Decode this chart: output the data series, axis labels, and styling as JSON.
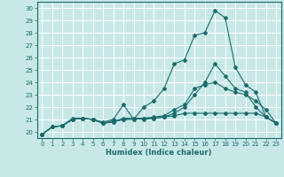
{
  "title": "",
  "xlabel": "Humidex (Indice chaleur)",
  "bg_color": "#c8e8e8",
  "grid_color": "#ffffff",
  "line_color": "#1a6b6b",
  "xlim": [
    -0.5,
    23.5
  ],
  "ylim": [
    19.5,
    30.5
  ],
  "xticks": [
    0,
    1,
    2,
    3,
    4,
    5,
    6,
    7,
    8,
    9,
    10,
    11,
    12,
    13,
    14,
    15,
    16,
    17,
    18,
    19,
    20,
    21,
    22,
    23
  ],
  "yticks": [
    20,
    21,
    22,
    23,
    24,
    25,
    26,
    27,
    28,
    29,
    30
  ],
  "line1_x": [
    0,
    1,
    2,
    3,
    4,
    5,
    6,
    7,
    8,
    9,
    10,
    11,
    12,
    13,
    14,
    15,
    16,
    17,
    18,
    19,
    20,
    21,
    22,
    23
  ],
  "line1_y": [
    19.8,
    20.4,
    20.5,
    21.0,
    21.1,
    21.0,
    20.8,
    21.0,
    22.2,
    21.0,
    22.0,
    22.5,
    23.5,
    25.5,
    25.8,
    27.8,
    28.0,
    29.8,
    29.2,
    25.2,
    23.8,
    23.2,
    21.2,
    20.7
  ],
  "line2_x": [
    0,
    1,
    2,
    3,
    4,
    5,
    6,
    7,
    8,
    9,
    10,
    11,
    12,
    13,
    14,
    15,
    16,
    17,
    18,
    19,
    20,
    21,
    22,
    23
  ],
  "line2_y": [
    19.8,
    20.4,
    20.5,
    21.1,
    21.1,
    21.0,
    20.7,
    20.8,
    21.1,
    21.1,
    21.0,
    21.1,
    21.2,
    21.5,
    22.0,
    23.0,
    24.0,
    25.5,
    24.5,
    23.5,
    23.2,
    22.0,
    21.2,
    20.7
  ],
  "line3_x": [
    0,
    1,
    2,
    3,
    4,
    5,
    6,
    7,
    8,
    9,
    10,
    11,
    12,
    13,
    14,
    15,
    16,
    17,
    18,
    19,
    20,
    21,
    22,
    23
  ],
  "line3_y": [
    19.8,
    20.4,
    20.5,
    21.0,
    21.1,
    21.0,
    20.7,
    20.9,
    21.0,
    21.0,
    21.1,
    21.2,
    21.3,
    21.8,
    22.2,
    23.5,
    23.8,
    24.0,
    23.5,
    23.2,
    23.0,
    22.5,
    21.8,
    20.7
  ],
  "line4_x": [
    0,
    1,
    2,
    3,
    4,
    5,
    6,
    7,
    8,
    9,
    10,
    11,
    12,
    13,
    14,
    15,
    16,
    17,
    18,
    19,
    20,
    21,
    22,
    23
  ],
  "line4_y": [
    19.8,
    20.4,
    20.5,
    21.0,
    21.1,
    21.0,
    20.7,
    20.8,
    21.0,
    21.1,
    21.1,
    21.1,
    21.2,
    21.3,
    21.5,
    21.5,
    21.5,
    21.5,
    21.5,
    21.5,
    21.5,
    21.5,
    21.2,
    20.7
  ]
}
